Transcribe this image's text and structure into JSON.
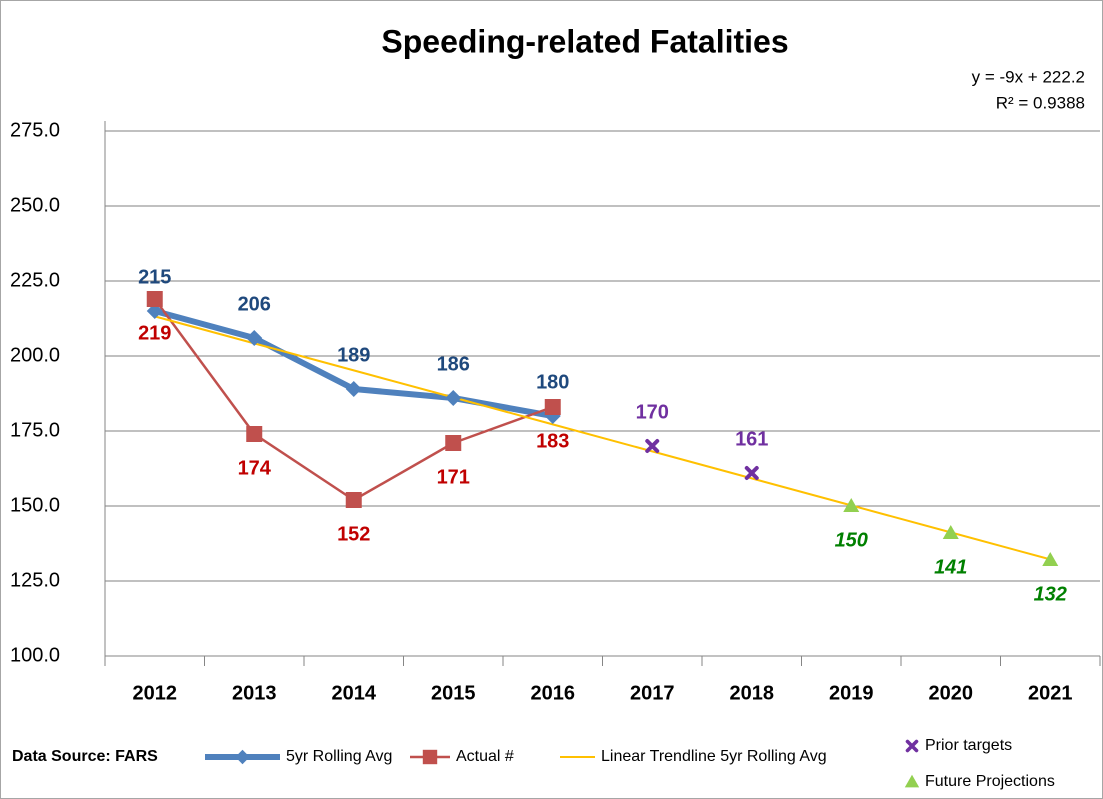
{
  "chart_data": {
    "type": "line",
    "title": "Speeding-related Fatalities",
    "annotations": [
      "y = -9x + 222.2",
      "R² = 0.9388"
    ],
    "source": "Data Source: FARS",
    "categories": [
      "2012",
      "2013",
      "2014",
      "2015",
      "2016",
      "2017",
      "2018",
      "2019",
      "2020",
      "2021"
    ],
    "series": [
      {
        "name": "5yr Rolling Avg",
        "color": "#4f81bd",
        "label_color": "#1f497d",
        "marker": "diamond",
        "line": true,
        "labels": "above",
        "values": [
          215,
          206,
          189,
          186,
          180,
          null,
          null,
          null,
          null,
          null
        ]
      },
      {
        "name": "Actual #",
        "color": "#c0504d",
        "label_color": "#c00000",
        "marker": "square",
        "line": true,
        "labels": "below",
        "values": [
          219,
          174,
          152,
          171,
          183,
          null,
          null,
          null,
          null,
          null
        ]
      },
      {
        "name": "Linear Trendline 5yr Rolling Avg",
        "color": "#ffc000",
        "marker": "none",
        "line": true,
        "labels": "none",
        "values": [
          213.2,
          204.2,
          195.2,
          186.2,
          177.2,
          168.2,
          159.2,
          150.2,
          141.2,
          132.2
        ]
      },
      {
        "name": "Prior targets",
        "color": "#7030a0",
        "label_color": "#7030a0",
        "marker": "x",
        "line": false,
        "labels": "above",
        "values": [
          null,
          null,
          null,
          null,
          null,
          170,
          161,
          null,
          null,
          null
        ]
      },
      {
        "name": "Future Projections",
        "color": "#92d050",
        "label_color": "#008000",
        "marker": "triangle",
        "line": false,
        "labels": "below-italic",
        "values": [
          null,
          null,
          null,
          null,
          null,
          null,
          null,
          150,
          141,
          132
        ]
      }
    ],
    "ylim": [
      100,
      275
    ],
    "yticks": [
      {
        "value": 100,
        "label": "100.0"
      },
      {
        "value": 125,
        "label": "125.0"
      },
      {
        "value": 150,
        "label": "150.0"
      },
      {
        "value": 175,
        "label": "175.0"
      },
      {
        "value": 200,
        "label": "200.0"
      },
      {
        "value": 225,
        "label": "225.0"
      },
      {
        "value": 250,
        "label": "250.0"
      },
      {
        "value": 275,
        "label": "275.0"
      }
    ],
    "grid": true
  }
}
